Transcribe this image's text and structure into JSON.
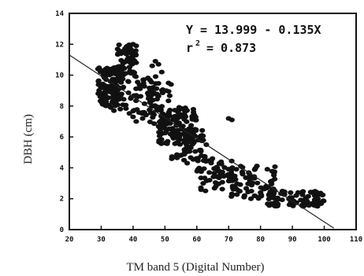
{
  "chart_data": {
    "type": "scatter",
    "title": "",
    "xlabel": "TM band 5 (Digital Number)",
    "ylabel": "DBH (cm)",
    "xlim": [
      20,
      110
    ],
    "ylim": [
      0,
      14
    ],
    "xticks": [
      20,
      30,
      40,
      50,
      60,
      70,
      80,
      90,
      100,
      110
    ],
    "yticks": [
      0,
      2,
      4,
      6,
      8,
      10,
      12,
      14
    ],
    "xtick_labels": [
      "20",
      "30",
      "40",
      "50",
      "60",
      "70",
      "80",
      "90",
      "100",
      "110"
    ],
    "ytick_labels": [
      "0",
      "2",
      "4",
      "6",
      "8",
      "10",
      "12",
      "14"
    ],
    "grid": false,
    "annotations": {
      "equation": "Y = 13.999 - 0.135X",
      "r2_label": "r",
      "r2_exp": "2",
      "r2_value": "= 0.873"
    },
    "fit_line": {
      "intercept": 13.999,
      "slope": -0.135,
      "x_range": [
        20,
        103
      ]
    },
    "point_clusters": [
      {
        "x": [
          29,
          37
        ],
        "y": [
          8.0,
          10.5
        ],
        "count": 150
      },
      {
        "x": [
          35,
          41
        ],
        "y": [
          10.0,
          12.0
        ],
        "count": 50
      },
      {
        "x": [
          37,
          48
        ],
        "y": [
          7.5,
          10.0
        ],
        "count": 55
      },
      {
        "x": [
          44,
          52
        ],
        "y": [
          6.5,
          9.5
        ],
        "count": 45
      },
      {
        "x": [
          48,
          60
        ],
        "y": [
          5.5,
          8.0
        ],
        "count": 120
      },
      {
        "x": [
          52,
          62
        ],
        "y": [
          4.5,
          6.5
        ],
        "count": 50
      },
      {
        "x": [
          60,
          72
        ],
        "y": [
          2.5,
          4.8
        ],
        "count": 55
      },
      {
        "x": [
          70,
          85
        ],
        "y": [
          2.0,
          4.2
        ],
        "count": 70
      },
      {
        "x": [
          82,
          100
        ],
        "y": [
          1.5,
          2.5
        ],
        "count": 85
      }
    ],
    "points": [
      [
        40,
        12.0
      ],
      [
        39,
        11.8
      ],
      [
        41,
        11.9
      ],
      [
        38,
        11.6
      ],
      [
        37,
        11.5
      ],
      [
        47,
        10.9
      ],
      [
        48,
        10.7
      ],
      [
        46,
        10.6
      ],
      [
        49,
        10.2
      ],
      [
        29,
        10.4
      ],
      [
        30,
        10.2
      ],
      [
        31,
        10.1
      ],
      [
        34,
        7.7
      ],
      [
        33,
        7.9
      ],
      [
        36,
        7.8
      ],
      [
        40,
        7.3
      ],
      [
        41,
        7.0
      ],
      [
        43,
        7.2
      ],
      [
        61,
        6.0
      ],
      [
        62,
        5.8
      ],
      [
        63,
        5.5
      ],
      [
        56,
        4.5
      ],
      [
        57,
        4.3
      ],
      [
        55,
        4.8
      ],
      [
        62,
        3.0
      ],
      [
        64,
        3.2
      ],
      [
        66,
        2.8
      ],
      [
        70,
        7.2
      ],
      [
        71,
        7.1
      ],
      [
        75,
        2.2
      ],
      [
        77,
        2.0
      ],
      [
        80,
        2.4
      ],
      [
        84,
        1.6
      ],
      [
        96,
        2.4
      ],
      [
        97,
        2.2
      ],
      [
        98,
        2.0
      ],
      [
        98,
        1.8
      ]
    ]
  }
}
